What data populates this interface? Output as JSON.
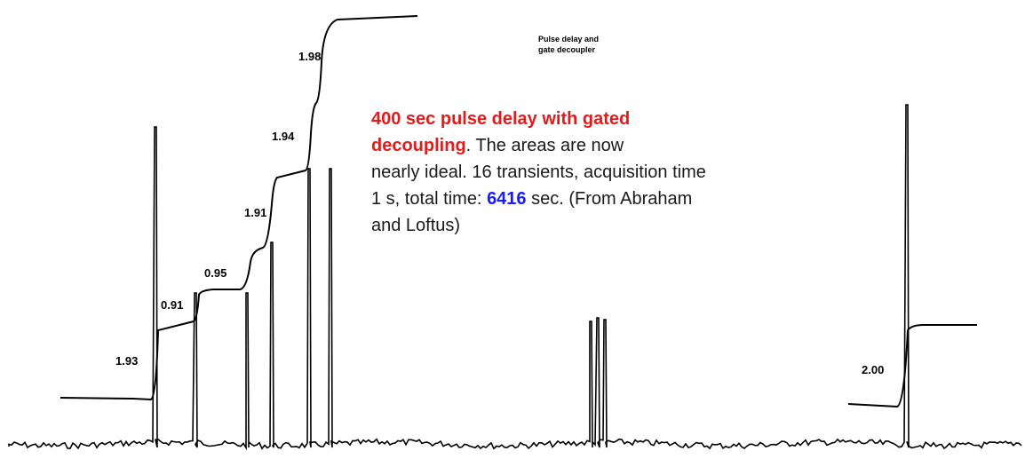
{
  "integral_labels": [
    "1.93",
    "0.91",
    "0.95",
    "1.91",
    "1.94",
    "1.98",
    "2.00"
  ],
  "note": {
    "lines": [
      "Pulse delay and",
      "gate decoupler"
    ]
  },
  "caption": {
    "lines": [
      [
        "400 sec pulse delay with gated"
      ],
      [
        "decoupling",
        ".  The areas are now"
      ],
      [
        "nearly ideal.  16 transients, acquisition time"
      ],
      [
        "1 s, total time: ",
        "6416",
        " sec. (From Abraham"
      ],
      [
        "and Loftus)"
      ]
    ]
  }
}
